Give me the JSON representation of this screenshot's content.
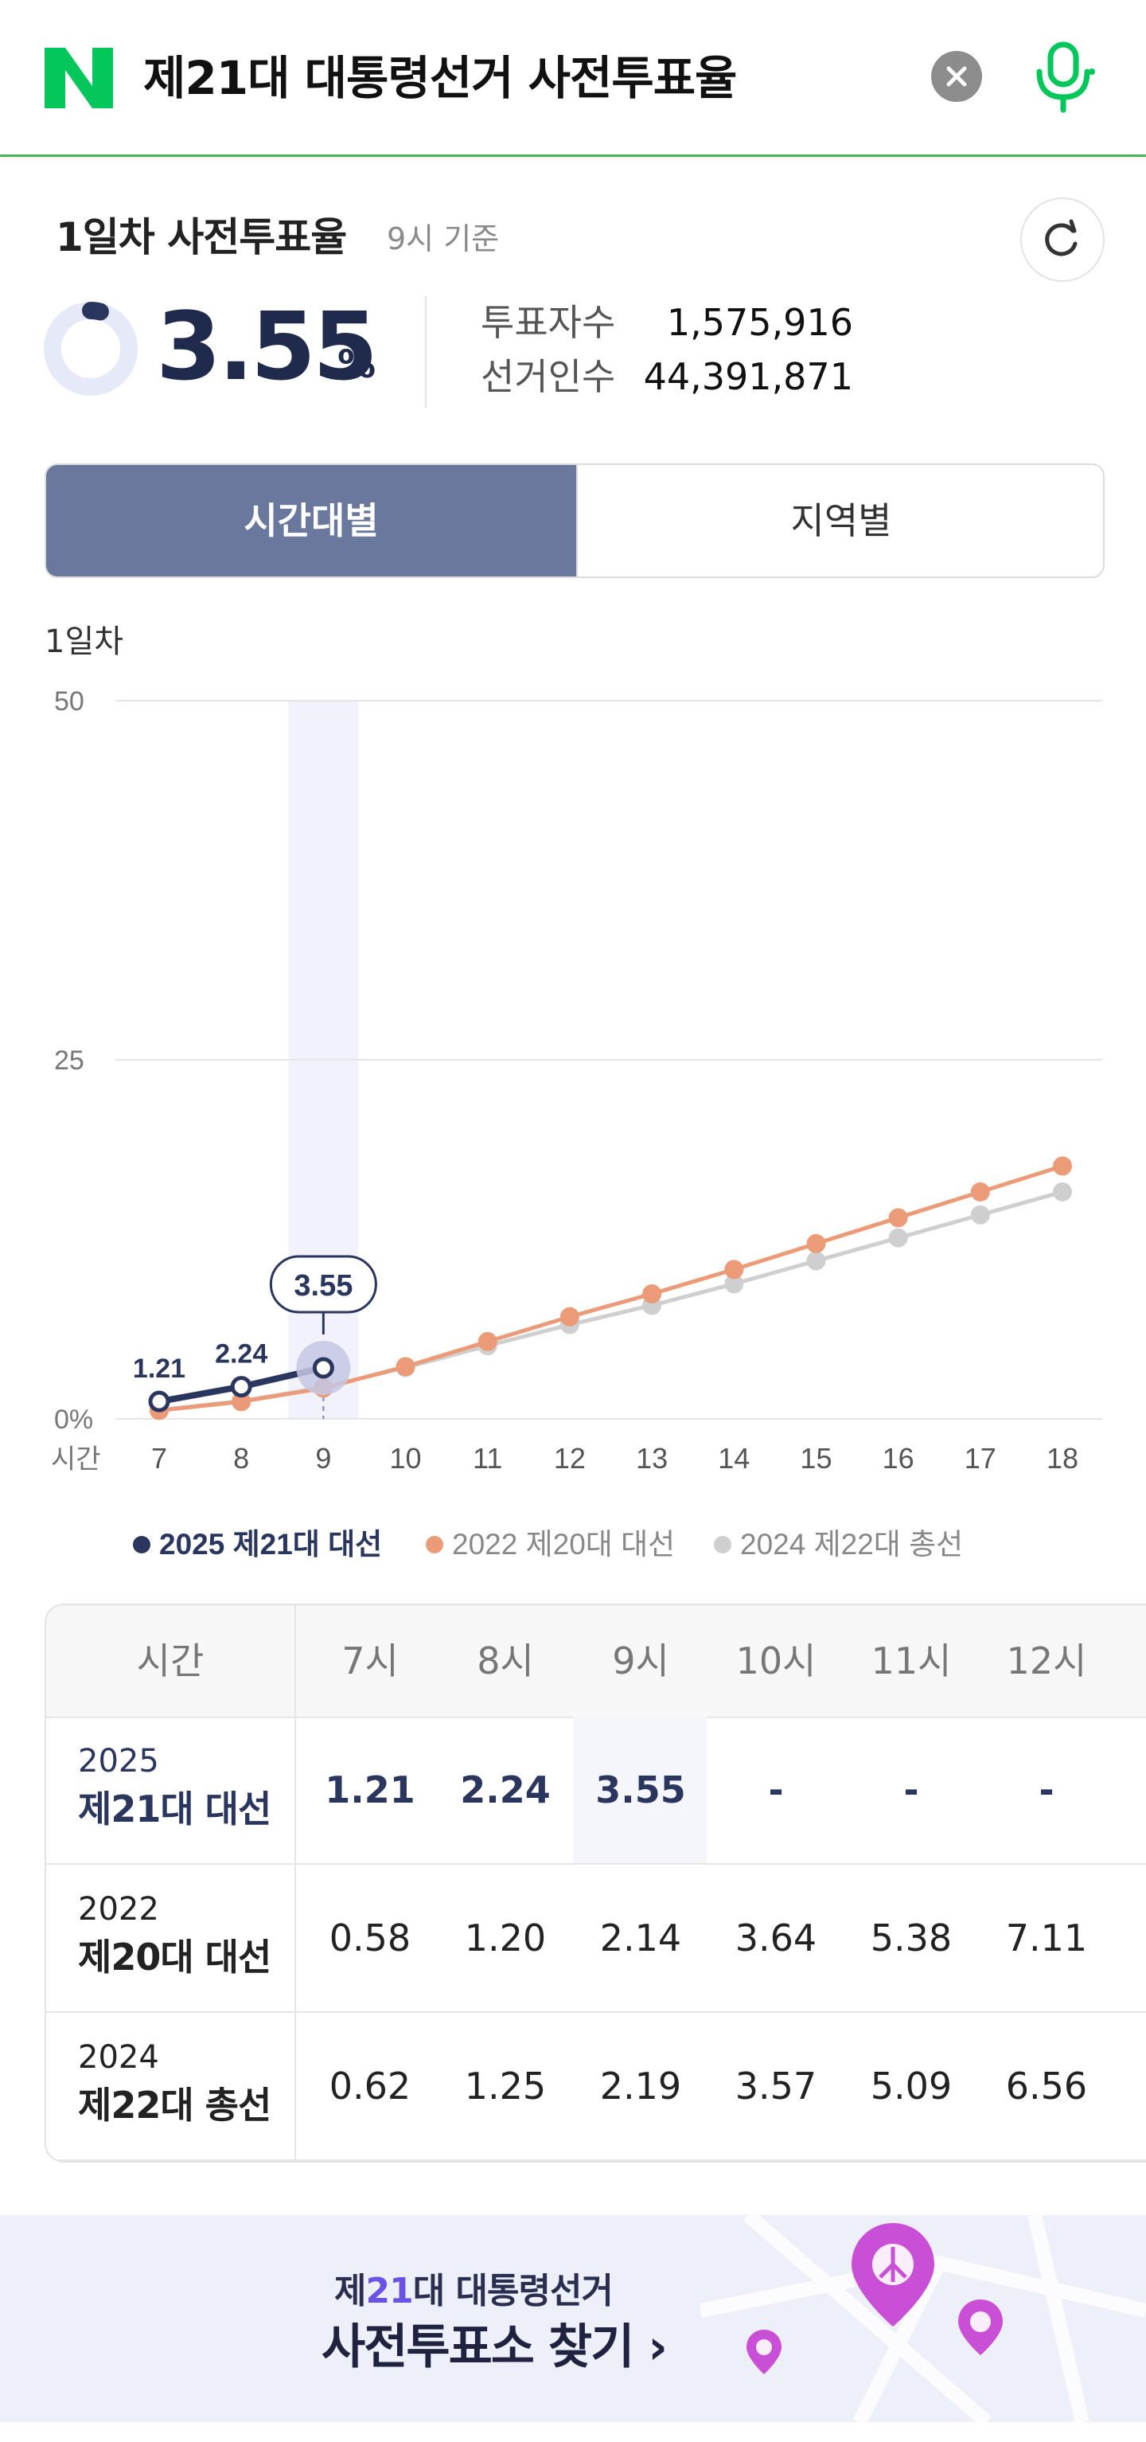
{
  "header": {
    "query": "제21대 대통령선거 사전투표율",
    "icons": [
      "naver-logo",
      "clear-icon",
      "mic-icon"
    ],
    "brand_color": "#03c75a"
  },
  "summary": {
    "title": "1일차 사전투표율",
    "as_of": "9시 기준",
    "rate": "3.55",
    "rate_unit": "%",
    "rate_fraction": 0.0355,
    "voters_label": "투표자수",
    "voters_value": "1,575,916",
    "electorate_label": "선거인수",
    "electorate_value": "44,391,871"
  },
  "tabs": {
    "by_time": "시간대별",
    "by_region": "지역별",
    "selected": "시간대별"
  },
  "chart_label": "1일차",
  "chart_data": {
    "type": "line",
    "x_axis_label": "시간",
    "x": [
      7,
      8,
      9,
      10,
      11,
      12,
      13,
      14,
      15,
      16,
      17,
      18
    ],
    "y_ticks": [
      "50",
      "25",
      "0%"
    ],
    "ylim": [
      0,
      50
    ],
    "highlight_x": 9,
    "callout": "3.55",
    "series": [
      {
        "name": "2025 제21대 대선",
        "color": "#2b365e",
        "values": [
          1.21,
          2.24,
          3.55,
          null,
          null,
          null,
          null,
          null,
          null,
          null,
          null,
          null
        ],
        "labels": [
          "1.21",
          "2.24"
        ]
      },
      {
        "name": "2022 제20대 대선",
        "color": "#ec9b78",
        "values": [
          0.58,
          1.2,
          2.14,
          3.64,
          5.38,
          7.11,
          8.7,
          10.4,
          12.2,
          14.0,
          15.8,
          17.6
        ]
      },
      {
        "name": "2024 제22대 총선",
        "color": "#cfcfcf",
        "values": [
          0.62,
          1.25,
          2.19,
          3.57,
          5.09,
          6.56,
          7.9,
          9.4,
          11.0,
          12.6,
          14.2,
          15.8
        ]
      }
    ],
    "legend_position": "bottom",
    "grid": true
  },
  "table": {
    "corner": "시간",
    "headers": [
      "7시",
      "8시",
      "9시",
      "10시",
      "11시",
      "12시"
    ],
    "rows": [
      {
        "year": "2025",
        "name": "제21대 대선",
        "values": [
          "1.21",
          "2.24",
          "3.55",
          "-",
          "-",
          "-"
        ]
      },
      {
        "year": "2022",
        "name": "제20대 대선",
        "values": [
          "0.58",
          "1.20",
          "2.14",
          "3.64",
          "5.38",
          "7.11"
        ]
      },
      {
        "year": "2024",
        "name": "제22대 총선",
        "values": [
          "0.62",
          "1.25",
          "2.19",
          "3.57",
          "5.09",
          "6.56"
        ]
      }
    ]
  },
  "banner": {
    "line1_prefix": "제",
    "line1_number": "21",
    "line1_suffix": "대 대통령선거",
    "line2": "사전투표소 찾기",
    "arrow": "›",
    "icons": [
      "map-pin-icon"
    ]
  }
}
